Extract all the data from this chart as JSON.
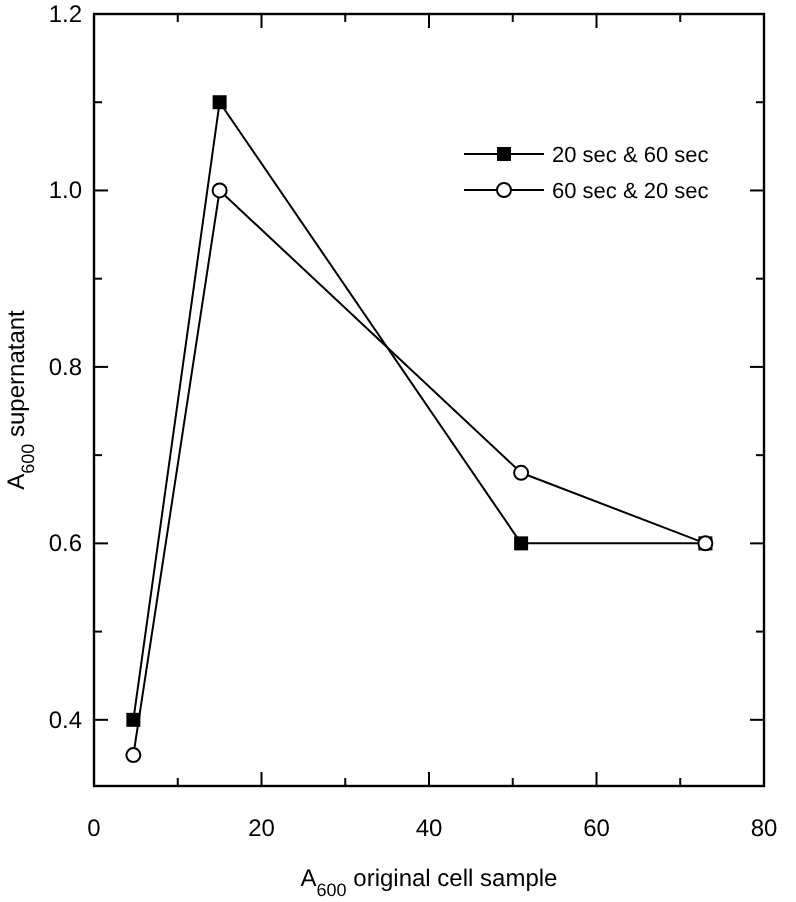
{
  "chart_data": {
    "type": "line",
    "xlabel": "A$_{600}$ original cell sample",
    "ylabel": "A$_{600}$ supernatant",
    "xlim": [
      0,
      80
    ],
    "ylim": [
      0.325,
      1.2
    ],
    "xticks": [
      0,
      {
        "value": 10,
        "label": null
      },
      20,
      {
        "value": 30,
        "label": null
      },
      40,
      {
        "value": 50,
        "label": null
      },
      60,
      {
        "value": 70,
        "label": null
      },
      80
    ],
    "yticks": [
      {
        "value": 0.4,
        "label": "0.4"
      },
      {
        "value": 0.5,
        "label": null
      },
      {
        "value": 0.6,
        "label": "0.6"
      },
      {
        "value": 0.7,
        "label": null
      },
      {
        "value": 0.8,
        "label": "0.8"
      },
      {
        "value": 0.9,
        "label": null
      },
      {
        "value": 1.0,
        "label": "1.0"
      },
      {
        "value": 1.1,
        "label": null
      },
      {
        "value": 1.2,
        "label": "1.2"
      }
    ],
    "grid": false,
    "legend": "top right",
    "line_style": "solid",
    "series": [
      {
        "name": "20 sec & 60 sec",
        "color": "#000000",
        "marker": "square",
        "x": [
          4.7,
          15,
          51,
          73
        ],
        "values": [
          0.4,
          1.1,
          0.6,
          0.6
        ]
      },
      {
        "name": "60 sec & 20 sec",
        "color": "#000000",
        "marker": "circle",
        "x": [
          4.7,
          15,
          51,
          73
        ],
        "values": [
          0.36,
          1.0,
          0.68,
          0.6
        ]
      }
    ]
  }
}
